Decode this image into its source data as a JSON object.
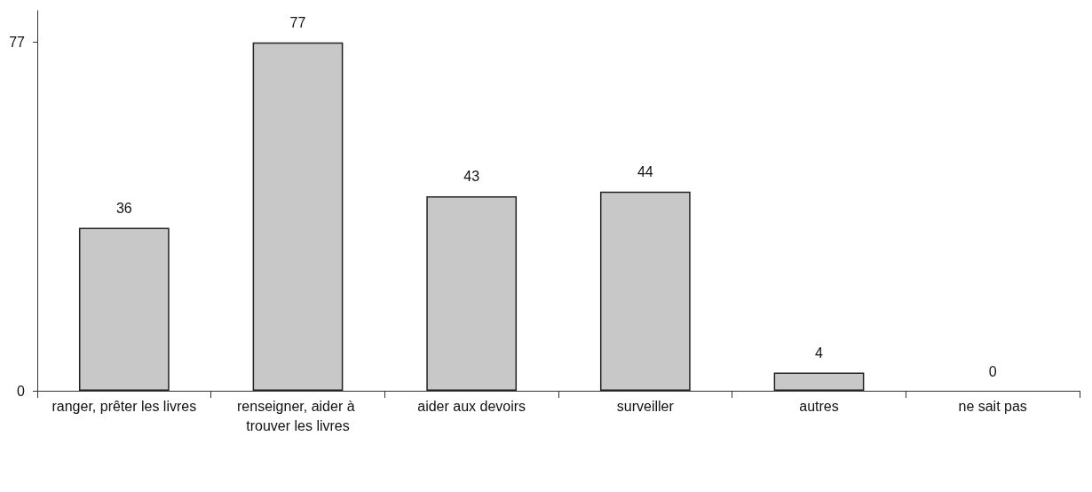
{
  "chart_data": {
    "type": "bar",
    "categories": [
      "ranger, prêter les livres",
      "renseigner, aider à trouver les livres",
      "aider aux devoirs",
      "surveiller",
      "autres",
      "ne sait pas"
    ],
    "values": [
      36,
      77,
      43,
      44,
      4,
      0
    ],
    "color": "#c8c8c8",
    "ylim": [
      0,
      84
    ],
    "yticks": [
      0,
      77
    ],
    "grid": false,
    "data_labels": true
  }
}
